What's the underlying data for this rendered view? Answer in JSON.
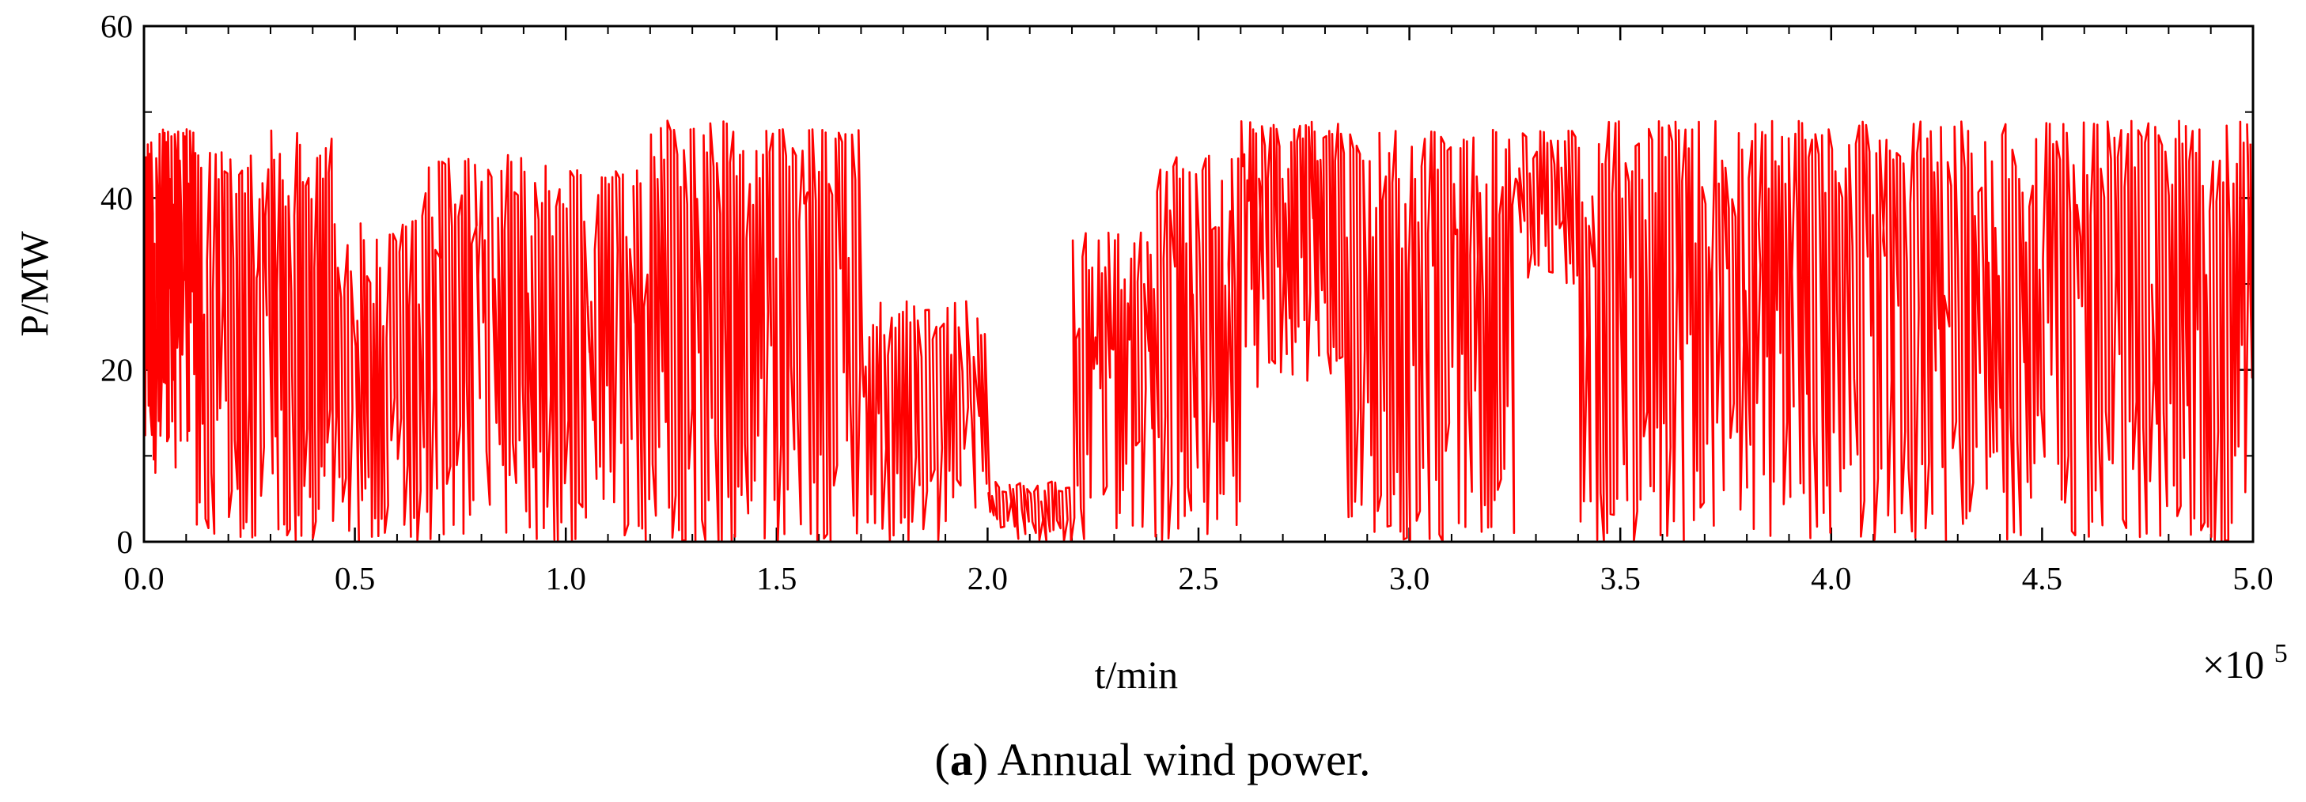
{
  "chart_data": {
    "type": "line",
    "title": "",
    "xlabel": "t/min",
    "ylabel": "P/MW",
    "x_multiplier_label": {
      "base": "×10",
      "exponent": "5"
    },
    "xlim": [
      0.0,
      5.0
    ],
    "ylim": [
      0,
      60
    ],
    "x_ticks": [
      "0.0",
      "0.5",
      "1.0",
      "1.5",
      "2.0",
      "2.5",
      "3.0",
      "3.5",
      "4.0",
      "4.5",
      "5.0"
    ],
    "y_ticks": [
      "0",
      "20",
      "40",
      "60"
    ],
    "grid": false,
    "line_color": "#ff0000",
    "series": [
      {
        "name": "Annual wind power",
        "segments": [
          {
            "x_start": 0.0,
            "x_end": 0.12,
            "low": 8,
            "high": 48,
            "density": 30
          },
          {
            "x_start": 0.12,
            "x_end": 0.3,
            "low": 0,
            "high": 46,
            "density": 26
          },
          {
            "x_start": 0.3,
            "x_end": 0.45,
            "low": 0,
            "high": 48,
            "density": 22
          },
          {
            "x_start": 0.45,
            "x_end": 0.65,
            "low": 0,
            "high": 38,
            "density": 26
          },
          {
            "x_start": 0.65,
            "x_end": 0.9,
            "low": 0,
            "high": 45,
            "density": 32
          },
          {
            "x_start": 0.9,
            "x_end": 1.2,
            "low": 0,
            "high": 44,
            "density": 36
          },
          {
            "x_start": 1.2,
            "x_end": 1.45,
            "low": 0,
            "high": 49,
            "density": 32
          },
          {
            "x_start": 1.45,
            "x_end": 1.7,
            "low": 0,
            "high": 48,
            "density": 32
          },
          {
            "x_start": 1.7,
            "x_end": 2.0,
            "low": 0,
            "high": 28,
            "density": 34
          },
          {
            "x_start": 2.0,
            "x_end": 2.2,
            "low": 0,
            "high": 7,
            "density": 24
          },
          {
            "x_start": 2.2,
            "x_end": 2.4,
            "low": 0,
            "high": 36,
            "density": 26
          },
          {
            "x_start": 2.4,
            "x_end": 2.6,
            "low": 0,
            "high": 45,
            "density": 26
          },
          {
            "x_start": 2.6,
            "x_end": 2.85,
            "low": 18,
            "high": 49,
            "density": 36
          },
          {
            "x_start": 2.85,
            "x_end": 3.25,
            "low": 0,
            "high": 48,
            "density": 52
          },
          {
            "x_start": 3.25,
            "x_end": 3.4,
            "low": 30,
            "high": 48,
            "density": 18
          },
          {
            "x_start": 3.4,
            "x_end": 4.0,
            "low": 0,
            "high": 49,
            "density": 76
          },
          {
            "x_start": 4.0,
            "x_end": 5.0,
            "low": 0,
            "high": 49,
            "density": 124
          }
        ]
      }
    ]
  },
  "caption": {
    "label": "a",
    "text": " Annual wind power."
  }
}
